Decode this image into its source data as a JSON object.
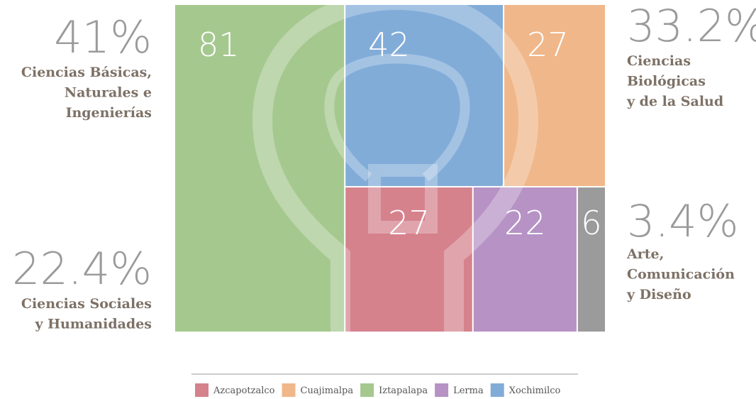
{
  "chart_data": {
    "type": "treemap",
    "series": [
      {
        "name": "Azcapotzalco",
        "color": "#d5828d",
        "values": [
          27
        ]
      },
      {
        "name": "Cuajimalpa",
        "color": "#f0b78a",
        "values": [
          27
        ]
      },
      {
        "name": "Iztapalapa",
        "color": "#a5c88f",
        "values": [
          81
        ]
      },
      {
        "name": "Lerma",
        "color": "#b692c5",
        "values": [
          22
        ]
      },
      {
        "name": "Xochimilco",
        "color": "#82acd8",
        "values": [
          42
        ]
      },
      {
        "name": null,
        "color": "#9b9b9b",
        "values": [
          6
        ]
      }
    ],
    "annotations": [
      {
        "share": "41%",
        "lines": [
          "Ciencias Básicas,",
          "Naturales e",
          "Ingenierías"
        ]
      },
      {
        "share": "22.4%",
        "lines": [
          "Ciencias Sociales",
          "y Humanidades"
        ]
      },
      {
        "share": "33.2%",
        "lines": [
          "Ciencias",
          "Biológicas",
          "y de la Salud"
        ]
      },
      {
        "share": "3.4%",
        "lines": [
          "Arte,",
          "Comunicación",
          "y Diseño"
        ]
      }
    ]
  }
}
